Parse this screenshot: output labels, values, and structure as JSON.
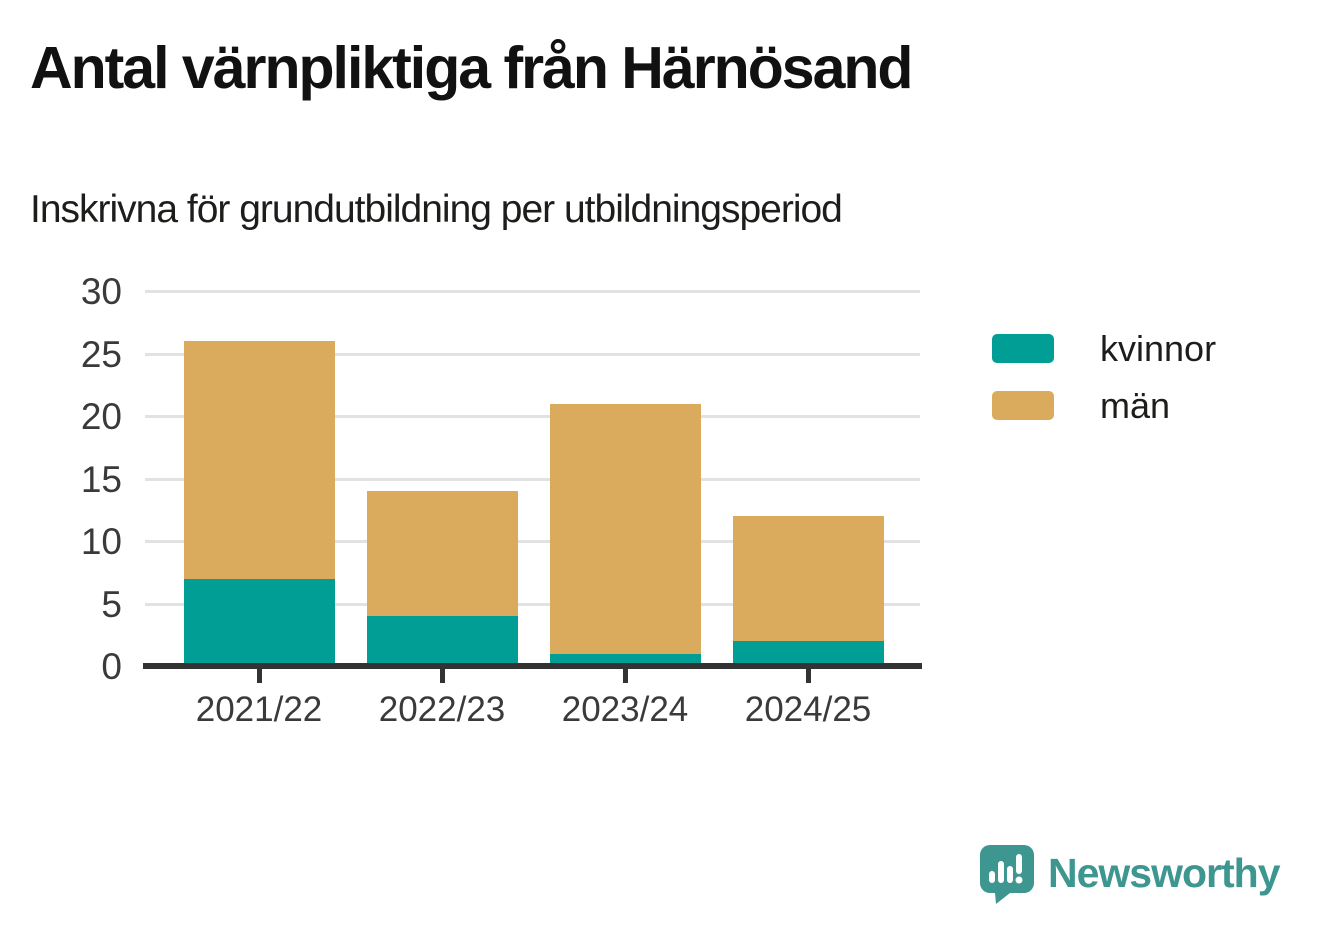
{
  "title": "Antal värnpliktiga från Härnösand",
  "subtitle": "Inskrivna för grundutbildning per utbildningsperiod",
  "colors": {
    "kvinnor": "#009e94",
    "man": "#daab5c",
    "grid": "#e2e2e2",
    "axis": "#333333",
    "label_text": "#3a3a3a",
    "logo_teal": "#3d968f"
  },
  "chart_data": {
    "type": "bar",
    "stacked": true,
    "title": "Antal värnpliktiga från Härnösand",
    "subtitle": "Inskrivna för grundutbildning per utbildningsperiod",
    "categories": [
      "2021/22",
      "2022/23",
      "2023/24",
      "2024/25"
    ],
    "series": [
      {
        "name": "kvinnor",
        "color_key": "kvinnor",
        "values": [
          7,
          4,
          1,
          2
        ]
      },
      {
        "name": "män",
        "color_key": "man",
        "values": [
          19,
          10,
          20,
          10
        ]
      }
    ],
    "totals": [
      26,
      14,
      21,
      12
    ],
    "xlabel": "",
    "ylabel": "",
    "ylim": [
      0,
      30
    ],
    "yticks": [
      0,
      5,
      10,
      15,
      20,
      25,
      30
    ],
    "grid": true,
    "legend_position": "right"
  },
  "branding": {
    "logo_text": "Newsworthy"
  }
}
